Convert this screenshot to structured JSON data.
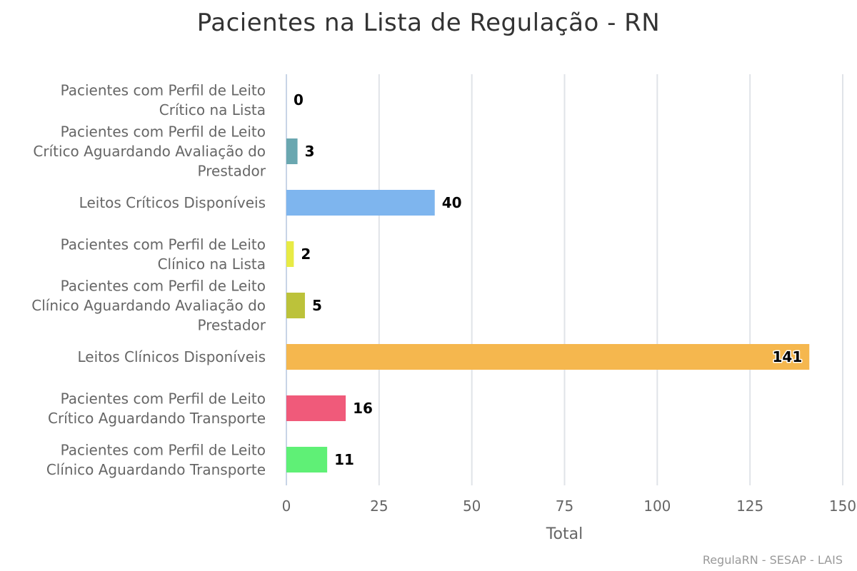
{
  "chart_data": {
    "type": "bar",
    "orientation": "horizontal",
    "title": "Pacientes na Lista de Regulação - RN",
    "xlabel": "Total",
    "ylabel": "",
    "xlim": [
      0,
      150
    ],
    "ticks": [
      0,
      25,
      50,
      75,
      100,
      125,
      150
    ],
    "grid": true,
    "legend": "none",
    "categories": [
      [
        "Pacientes com Perfil de Leito",
        "Crítico na Lista"
      ],
      [
        "Pacientes com Perfil de Leito",
        "Crítico Aguardando Avaliação do",
        "Prestador"
      ],
      [
        "Leitos Críticos Disponíveis"
      ],
      [
        "Pacientes com Perfil de Leito",
        "Clínico na Lista"
      ],
      [
        "Pacientes com Perfil de Leito",
        "Clínico Aguardando Avaliação do",
        "Prestador"
      ],
      [
        "Leitos Clínicos Disponíveis"
      ],
      [
        "Pacientes com Perfil de Leito",
        "Crítico Aguardando Transporte"
      ],
      [
        "Pacientes com Perfil de Leito",
        "Clínico Aguardando Transporte"
      ]
    ],
    "values": [
      0,
      3,
      40,
      2,
      5,
      141,
      16,
      11
    ],
    "colors": [
      "#5e6e86",
      "#6aa7b0",
      "#7eb5ee",
      "#e8eb45",
      "#bcc23a",
      "#f5b74e",
      "#f05a7a",
      "#5ff076"
    ]
  },
  "credits": "RegulaRN - SESAP - LAIS"
}
